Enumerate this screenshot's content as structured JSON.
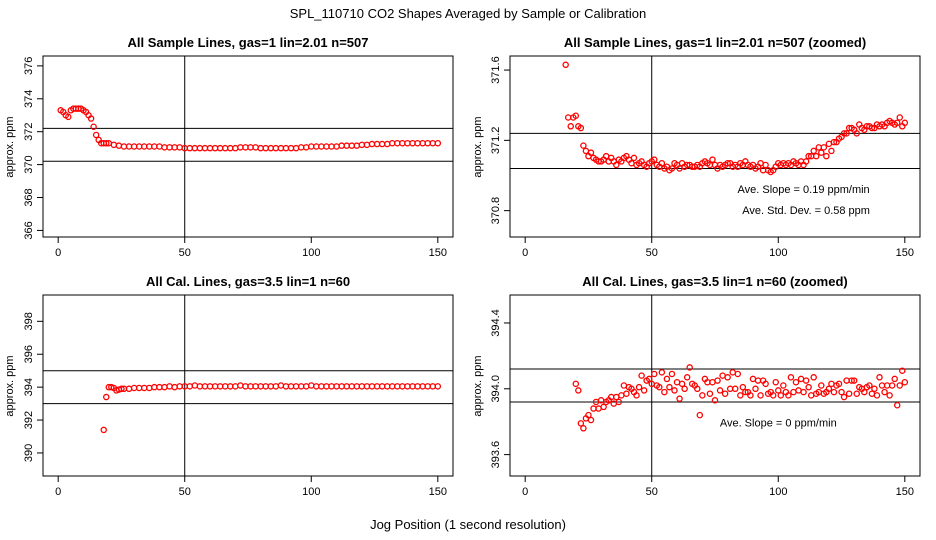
{
  "figure": {
    "suptitle": "SPL_110710  CO2 Shapes Averaged by Sample or Calibration",
    "xlabel": "Jog Position (1 second resolution)"
  },
  "colors": {
    "points": "#ff0000",
    "lines": "#000000",
    "frame": "#000000"
  },
  "chart_data": [
    {
      "type": "scatter",
      "title": "All Sample Lines, gas=1 lin=2.01 n=507",
      "ylabel": "approx. ppm",
      "xlim": [
        -6,
        156
      ],
      "ylim": [
        365.6,
        376.6
      ],
      "xticks": [
        0,
        50,
        100,
        150
      ],
      "yticks": [
        366,
        368,
        370,
        372,
        374,
        376
      ],
      "vline": 50,
      "hlines": [
        372.2,
        370.2
      ],
      "annotations": [],
      "series": [
        {
          "x": [
            1,
            2,
            3,
            4,
            5,
            6,
            7,
            8,
            9,
            10,
            11,
            12,
            13,
            14,
            15,
            16,
            17,
            18,
            19,
            20,
            22,
            24,
            26,
            28,
            30,
            32,
            34,
            36,
            38,
            40,
            42,
            44,
            46,
            48,
            50,
            52,
            54,
            56,
            58,
            60,
            62,
            64,
            66,
            68,
            70,
            72,
            74,
            76,
            78,
            80,
            82,
            84,
            86,
            88,
            90,
            92,
            94,
            96,
            98,
            100,
            102,
            104,
            106,
            108,
            110,
            112,
            114,
            116,
            118,
            120,
            122,
            124,
            126,
            128,
            130,
            132,
            134,
            136,
            138,
            140,
            142,
            144,
            146,
            148,
            150
          ],
          "y": [
            373.3,
            373.2,
            373.0,
            372.9,
            373.3,
            373.4,
            373.4,
            373.4,
            373.4,
            373.3,
            373.2,
            373.0,
            372.8,
            372.3,
            371.8,
            371.5,
            371.3,
            371.3,
            371.3,
            371.3,
            371.2,
            371.15,
            371.1,
            371.1,
            371.1,
            371.1,
            371.1,
            371.1,
            371.1,
            371.1,
            371.05,
            371.05,
            371.05,
            371.05,
            371.0,
            371.0,
            371.0,
            371.0,
            371.0,
            371.0,
            371.0,
            371.0,
            371.0,
            371.0,
            371.0,
            371.05,
            371.05,
            371.05,
            371.05,
            371.0,
            371.0,
            371.0,
            371.0,
            371.0,
            371.0,
            371.0,
            371.0,
            371.05,
            371.05,
            371.1,
            371.1,
            371.1,
            371.1,
            371.1,
            371.1,
            371.15,
            371.15,
            371.15,
            371.15,
            371.2,
            371.2,
            371.25,
            371.25,
            371.25,
            371.25,
            371.3,
            371.3,
            371.3,
            371.3,
            371.3,
            371.3,
            371.3,
            371.3,
            371.3,
            371.3
          ]
        }
      ]
    },
    {
      "type": "scatter",
      "title": "All Sample Lines, gas=1 lin=2.01 n=507 (zoomed)",
      "ylabel": "approx. ppm",
      "xlim": [
        -6,
        156
      ],
      "ylim": [
        370.65,
        371.68
      ],
      "xticks": [
        0,
        50,
        100,
        150
      ],
      "yticks": [
        370.8,
        371.2,
        371.6
      ],
      "vline": 50,
      "hlines": [
        371.24,
        371.04
      ],
      "annotations": [
        {
          "text": "Ave. Slope =  0.19  ppm/min",
          "x": 110,
          "y": 370.9
        },
        {
          "text": "Ave. Std. Dev. =  0.58  ppm",
          "x": 111,
          "y": 370.78
        }
      ],
      "series": [
        {
          "x": [
            16,
            17,
            18,
            19,
            20,
            21,
            22,
            23,
            24,
            25,
            26,
            27,
            28,
            29,
            30,
            31,
            32,
            33,
            34,
            35,
            36,
            37,
            38,
            39,
            40,
            41,
            42,
            43,
            44,
            45,
            46,
            47,
            48,
            49,
            50,
            51,
            52,
            53,
            54,
            55,
            56,
            57,
            58,
            59,
            60,
            61,
            62,
            63,
            64,
            65,
            66,
            67,
            68,
            69,
            70,
            71,
            72,
            73,
            74,
            75,
            76,
            77,
            78,
            79,
            80,
            81,
            82,
            83,
            84,
            85,
            86,
            87,
            88,
            89,
            90,
            91,
            92,
            93,
            94,
            95,
            96,
            97,
            98,
            99,
            100,
            101,
            102,
            103,
            104,
            105,
            106,
            107,
            108,
            109,
            110,
            111,
            112,
            113,
            114,
            115,
            116,
            117,
            118,
            119,
            120,
            121,
            122,
            123,
            124,
            125,
            126,
            127,
            128,
            129,
            130,
            131,
            132,
            133,
            134,
            135,
            136,
            137,
            138,
            139,
            140,
            141,
            142,
            143,
            144,
            145,
            146,
            147,
            148,
            149,
            150
          ],
          "y": [
            371.63,
            371.33,
            371.28,
            371.33,
            371.34,
            371.28,
            371.27,
            371.17,
            371.14,
            371.11,
            371.13,
            371.1,
            371.09,
            371.08,
            371.08,
            371.09,
            371.11,
            371.08,
            371.1,
            371.08,
            371.06,
            371.09,
            371.08,
            371.1,
            371.11,
            371.09,
            371.07,
            371.1,
            371.06,
            371.07,
            371.08,
            371.06,
            371.05,
            371.07,
            371.08,
            371.09,
            371.06,
            371.05,
            371.07,
            371.04,
            371.05,
            371.03,
            371.04,
            371.07,
            371.06,
            371.04,
            371.07,
            371.05,
            371.06,
            371.06,
            371.05,
            371.05,
            371.06,
            371.05,
            371.07,
            371.08,
            371.07,
            371.06,
            371.09,
            371.06,
            371.04,
            371.06,
            371.05,
            371.06,
            371.07,
            371.07,
            371.05,
            371.06,
            371.05,
            371.07,
            371.06,
            371.08,
            371.06,
            371.05,
            371.06,
            371.04,
            371.05,
            371.07,
            371.03,
            371.06,
            371.03,
            371.02,
            371.03,
            371.05,
            371.07,
            371.06,
            371.07,
            371.06,
            371.07,
            371.06,
            371.08,
            371.07,
            371.06,
            371.08,
            371.06,
            371.08,
            371.11,
            371.11,
            371.14,
            371.11,
            371.16,
            371.13,
            371.16,
            371.11,
            371.18,
            371.14,
            371.19,
            371.19,
            371.21,
            371.22,
            371.24,
            371.24,
            371.27,
            371.27,
            371.26,
            371.24,
            371.29,
            371.27,
            371.26,
            371.28,
            371.28,
            371.27,
            371.27,
            371.29,
            371.28,
            371.29,
            371.28,
            371.3,
            371.31,
            371.3,
            371.29,
            371.3,
            371.33,
            371.28,
            371.3
          ]
        }
      ]
    },
    {
      "type": "scatter",
      "title": "All Cal. Lines, gas=3.5 lin=1 n=60",
      "ylabel": "approx. ppm",
      "xlim": [
        -6,
        156
      ],
      "ylim": [
        388.6,
        399.6
      ],
      "xticks": [
        0,
        50,
        100,
        150
      ],
      "yticks": [
        390,
        392,
        394,
        396,
        398
      ],
      "vline": 50,
      "hlines": [
        395.0,
        393.0
      ],
      "annotations": [],
      "series": [
        {
          "x": [
            18,
            19,
            20,
            21,
            22,
            23,
            24,
            25,
            26,
            28,
            30,
            32,
            34,
            36,
            38,
            40,
            42,
            44,
            46,
            48,
            50,
            52,
            54,
            56,
            58,
            60,
            62,
            64,
            66,
            68,
            70,
            72,
            74,
            76,
            78,
            80,
            82,
            84,
            86,
            88,
            90,
            92,
            94,
            96,
            98,
            100,
            102,
            104,
            106,
            108,
            110,
            112,
            114,
            116,
            118,
            120,
            122,
            124,
            126,
            128,
            130,
            132,
            134,
            136,
            138,
            140,
            142,
            144,
            146,
            148,
            150
          ],
          "y": [
            391.4,
            393.4,
            394.0,
            394.0,
            393.95,
            393.8,
            393.85,
            393.9,
            393.9,
            393.9,
            393.95,
            393.95,
            393.95,
            393.95,
            394.0,
            394.0,
            394.0,
            394.05,
            394.0,
            394.05,
            394.05,
            394.05,
            394.1,
            394.05,
            394.05,
            394.05,
            394.05,
            394.05,
            394.05,
            394.05,
            394.05,
            394.1,
            394.05,
            394.05,
            394.05,
            394.05,
            394.05,
            394.05,
            394.05,
            394.1,
            394.05,
            394.05,
            394.05,
            394.05,
            394.05,
            394.1,
            394.05,
            394.05,
            394.05,
            394.05,
            394.05,
            394.05,
            394.05,
            394.05,
            394.05,
            394.05,
            394.05,
            394.05,
            394.05,
            394.05,
            394.05,
            394.05,
            394.05,
            394.05,
            394.05,
            394.05,
            394.05,
            394.05,
            394.05,
            394.05,
            394.05
          ]
        }
      ]
    },
    {
      "type": "scatter",
      "title": "All Cal. Lines, gas=3.5 lin=1 n=60 (zoomed)",
      "ylabel": "approx. ppm",
      "xlim": [
        -6,
        156
      ],
      "ylim": [
        393.47,
        394.57
      ],
      "xticks": [
        0,
        50,
        100,
        150
      ],
      "yticks": [
        393.6,
        394.0,
        394.4
      ],
      "vline": 50,
      "hlines": [
        394.12,
        393.92
      ],
      "annotations": [
        {
          "text": "Ave. Slope =  0  ppm/min",
          "x": 100,
          "y": 393.77
        }
      ],
      "series": [
        {
          "x": [
            20,
            21,
            22,
            23,
            24,
            25,
            26,
            27,
            28,
            29,
            30,
            31,
            32,
            33,
            34,
            35,
            36,
            37,
            38,
            39,
            40,
            41,
            42,
            43,
            44,
            45,
            46,
            47,
            48,
            49,
            50,
            51,
            52,
            53,
            54,
            55,
            56,
            57,
            58,
            59,
            60,
            61,
            62,
            63,
            64,
            65,
            66,
            67,
            68,
            69,
            70,
            71,
            72,
            73,
            74,
            75,
            76,
            77,
            78,
            79,
            80,
            81,
            82,
            83,
            84,
            85,
            86,
            87,
            88,
            89,
            90,
            91,
            92,
            93,
            94,
            95,
            96,
            97,
            98,
            99,
            100,
            101,
            102,
            103,
            104,
            105,
            106,
            107,
            108,
            109,
            110,
            111,
            112,
            113,
            114,
            115,
            116,
            117,
            118,
            119,
            120,
            121,
            122,
            123,
            124,
            125,
            126,
            127,
            128,
            129,
            130,
            131,
            132,
            133,
            134,
            135,
            136,
            137,
            138,
            139,
            140,
            141,
            142,
            143,
            144,
            145,
            146,
            147,
            148,
            149,
            150
          ],
          "y": [
            394.03,
            393.99,
            393.79,
            393.76,
            393.82,
            393.84,
            393.81,
            393.88,
            393.92,
            393.88,
            393.93,
            393.89,
            393.92,
            393.93,
            393.95,
            393.91,
            393.95,
            393.92,
            393.96,
            394.02,
            393.97,
            394.01,
            394.0,
            393.98,
            393.96,
            394.01,
            394.08,
            393.99,
            394.05,
            394.06,
            394.03,
            394.09,
            394.02,
            394.01,
            394.1,
            393.98,
            394.06,
            394.01,
            394.09,
            393.99,
            394.04,
            393.94,
            394.03,
            394.0,
            394.07,
            394.13,
            394.03,
            394.02,
            394.0,
            393.84,
            393.96,
            394.06,
            394.04,
            393.97,
            394.04,
            393.93,
            394.05,
            393.99,
            394.08,
            393.97,
            394.07,
            394.0,
            394.1,
            394.0,
            394.09,
            393.96,
            394.01,
            393.98,
            393.98,
            393.96,
            394.06,
            394.0,
            394.05,
            393.96,
            394.05,
            394.03,
            393.97,
            393.98,
            393.96,
            394.04,
            393.99,
            393.96,
            394.02,
            393.98,
            393.96,
            394.07,
            393.98,
            394.04,
            393.99,
            394.06,
            393.98,
            394.05,
            394.01,
            393.96,
            394.07,
            393.97,
            393.98,
            394.02,
            393.97,
            393.98,
            394.0,
            394.03,
            393.98,
            394.02,
            394.03,
            393.98,
            393.95,
            394.05,
            393.97,
            394.05,
            394.05,
            393.97,
            394.01,
            394.0,
            393.98,
            394.01,
            394.02,
            393.97,
            394.0,
            393.96,
            394.07,
            394.02,
            393.98,
            394.02,
            393.96,
            394.02,
            394.06,
            393.9,
            394.02,
            394.11,
            394.04
          ]
        }
      ]
    }
  ]
}
